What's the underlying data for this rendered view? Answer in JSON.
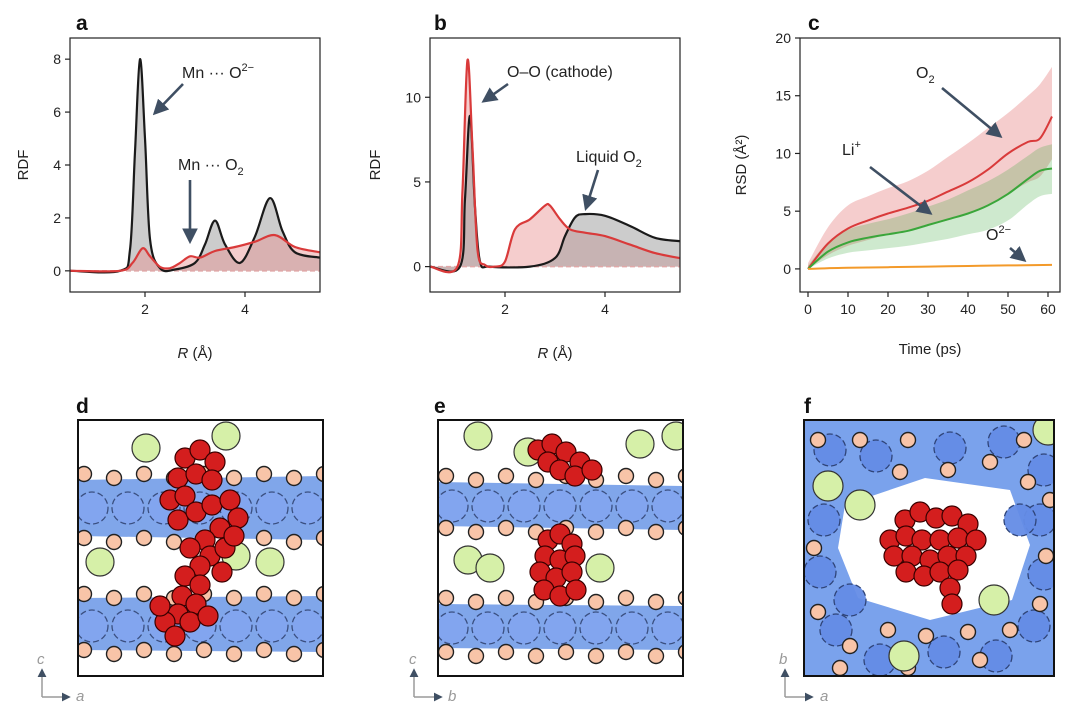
{
  "panel_labels": [
    "a",
    "b",
    "c",
    "d",
    "e",
    "f"
  ],
  "colors": {
    "black_line": "#1a1a1a",
    "red_line": "#d93a3a",
    "red_fill": "#e89090",
    "grey_fill": "#9a9a9a",
    "green_line": "#3aa63a",
    "orange_line": "#f39a2a",
    "arrow": "#3f4f63",
    "mn_layer": "#6a96e6",
    "o_atom": "#f8c4a8",
    "li_atom": "#d6f0a8",
    "o2_atom": "#d41e1e"
  },
  "chart_data": [
    {
      "panel": "a",
      "type": "line",
      "xlabel": "R (Å)",
      "ylabel": "RDF",
      "xlim": [
        0.5,
        5.5
      ],
      "ylim": [
        -0.8,
        8.8
      ],
      "xticks": [
        2,
        4
      ],
      "yticks": [
        0,
        2,
        4,
        6,
        8
      ],
      "series": [
        {
          "name": "Mn ··· O2−",
          "style": "black",
          "x": [
            0.5,
            1.5,
            1.7,
            1.8,
            1.9,
            2.0,
            2.1,
            2.3,
            2.6,
            3.0,
            3.2,
            3.4,
            3.6,
            3.9,
            4.2,
            4.5,
            4.75,
            5.0,
            5.5
          ],
          "y": [
            0,
            0,
            0.8,
            4.5,
            8.0,
            5.0,
            1.2,
            0.1,
            0.05,
            0.3,
            1.0,
            1.9,
            1.0,
            0.3,
            1.3,
            2.75,
            1.5,
            0.7,
            0.5
          ]
        },
        {
          "name": "Mn ··· O2",
          "style": "red",
          "x": [
            0.5,
            1.5,
            1.75,
            1.95,
            2.1,
            2.3,
            2.5,
            2.7,
            2.9,
            3.1,
            3.4,
            3.8,
            4.2,
            4.6,
            5.0,
            5.5
          ],
          "y": [
            0,
            0,
            0.3,
            0.85,
            0.55,
            0.15,
            0.1,
            0.3,
            0.55,
            0.5,
            0.75,
            0.9,
            1.1,
            1.35,
            0.9,
            0.7
          ]
        }
      ],
      "annotations": [
        {
          "base": "Mn ··· O",
          "sup": "2−"
        },
        {
          "base": "Mn ··· O",
          "sub": "2"
        }
      ]
    },
    {
      "panel": "b",
      "type": "line",
      "xlabel": "R (Å)",
      "ylabel": "RDF",
      "xlim": [
        0.5,
        5.5
      ],
      "ylim": [
        -1.5,
        13.5
      ],
      "xticks": [
        2,
        4
      ],
      "yticks": [
        0,
        5,
        10
      ],
      "series": [
        {
          "name": "O–O (cathode)",
          "style": "black",
          "x": [
            0.5,
            1.1,
            1.2,
            1.3,
            1.4,
            1.5,
            1.7,
            2.5,
            3.0,
            3.2,
            3.4,
            3.6,
            4.0,
            4.5,
            5.0,
            5.5
          ],
          "y": [
            0,
            0,
            4.0,
            8.9,
            3.5,
            0.3,
            0,
            0,
            0.5,
            1.8,
            2.9,
            3.1,
            3.0,
            2.4,
            1.7,
            1.5
          ]
        },
        {
          "name": "Liquid O2",
          "style": "red",
          "x": [
            0.5,
            1.05,
            1.15,
            1.25,
            1.35,
            1.45,
            1.6,
            1.8,
            2.0,
            2.2,
            2.5,
            2.8,
            2.9,
            3.1,
            3.3,
            3.6,
            4.0,
            4.5,
            5.0,
            5.5
          ],
          "y": [
            0,
            0,
            4.5,
            12.2,
            7.0,
            1.0,
            0.1,
            0,
            0.3,
            2.2,
            2.8,
            3.6,
            3.6,
            2.8,
            2.2,
            2.0,
            1.8,
            1.3,
            0.8,
            0.5
          ]
        }
      ],
      "annotations": [
        {
          "base": "O–O (cathode)"
        },
        {
          "base": "Liquid O",
          "sub": "2"
        }
      ]
    },
    {
      "panel": "c",
      "type": "line",
      "xlabel": "Time (ps)",
      "ylabel": "RSD (Å²)",
      "xlim": [
        -2,
        63
      ],
      "ylim": [
        -2,
        20
      ],
      "xticks": [
        0,
        10,
        20,
        30,
        40,
        50,
        60
      ],
      "yticks": [
        0,
        5,
        10,
        15,
        20
      ],
      "series": [
        {
          "name": "O2",
          "style": "red",
          "x": [
            0,
            5,
            10,
            15,
            20,
            25,
            30,
            35,
            40,
            45,
            50,
            55,
            58,
            61
          ],
          "y": [
            0,
            2.2,
            3.5,
            4.2,
            4.8,
            5.3,
            5.9,
            6.7,
            7.5,
            8.6,
            10.0,
            11.0,
            11.3,
            13.2
          ],
          "upper": [
            0.5,
            3.6,
            5.5,
            6.3,
            7.0,
            7.6,
            8.5,
            9.7,
            10.9,
            12.2,
            13.5,
            15.0,
            16.0,
            17.5
          ],
          "lower": [
            0,
            1.2,
            2.0,
            2.5,
            3.0,
            3.4,
            3.8,
            4.2,
            4.8,
            5.5,
            6.5,
            7.5,
            8.0,
            9.5
          ]
        },
        {
          "name": "Li+",
          "style": "green",
          "x": [
            0,
            5,
            10,
            15,
            20,
            25,
            30,
            35,
            40,
            45,
            50,
            55,
            58,
            61
          ],
          "y": [
            0,
            1.5,
            2.3,
            2.7,
            3.0,
            3.3,
            3.8,
            4.3,
            4.8,
            5.5,
            6.5,
            7.8,
            8.5,
            8.7
          ],
          "upper": [
            0.3,
            2.3,
            3.4,
            3.9,
            4.3,
            4.8,
            5.4,
            6.0,
            6.8,
            7.6,
            8.6,
            9.8,
            10.5,
            10.8
          ],
          "lower": [
            0,
            0.9,
            1.4,
            1.6,
            1.8,
            2.0,
            2.3,
            2.6,
            3.0,
            3.4,
            4.2,
            5.6,
            6.3,
            6.5
          ]
        },
        {
          "name": "O2−",
          "style": "orange",
          "x": [
            0,
            10,
            20,
            30,
            40,
            50,
            61
          ],
          "y": [
            0,
            0.1,
            0.15,
            0.2,
            0.25,
            0.3,
            0.35
          ]
        }
      ],
      "annotations": [
        {
          "base": "O",
          "sub": "2"
        },
        {
          "base": "Li",
          "sup": "+"
        },
        {
          "base": "O",
          "sup": "2−"
        }
      ]
    }
  ],
  "structures": [
    {
      "panel": "d",
      "axis_vertical": "c",
      "axis_horizontal": "a"
    },
    {
      "panel": "e",
      "axis_vertical": "c",
      "axis_horizontal": "b"
    },
    {
      "panel": "f",
      "axis_vertical": "b",
      "axis_horizontal": "a"
    }
  ]
}
